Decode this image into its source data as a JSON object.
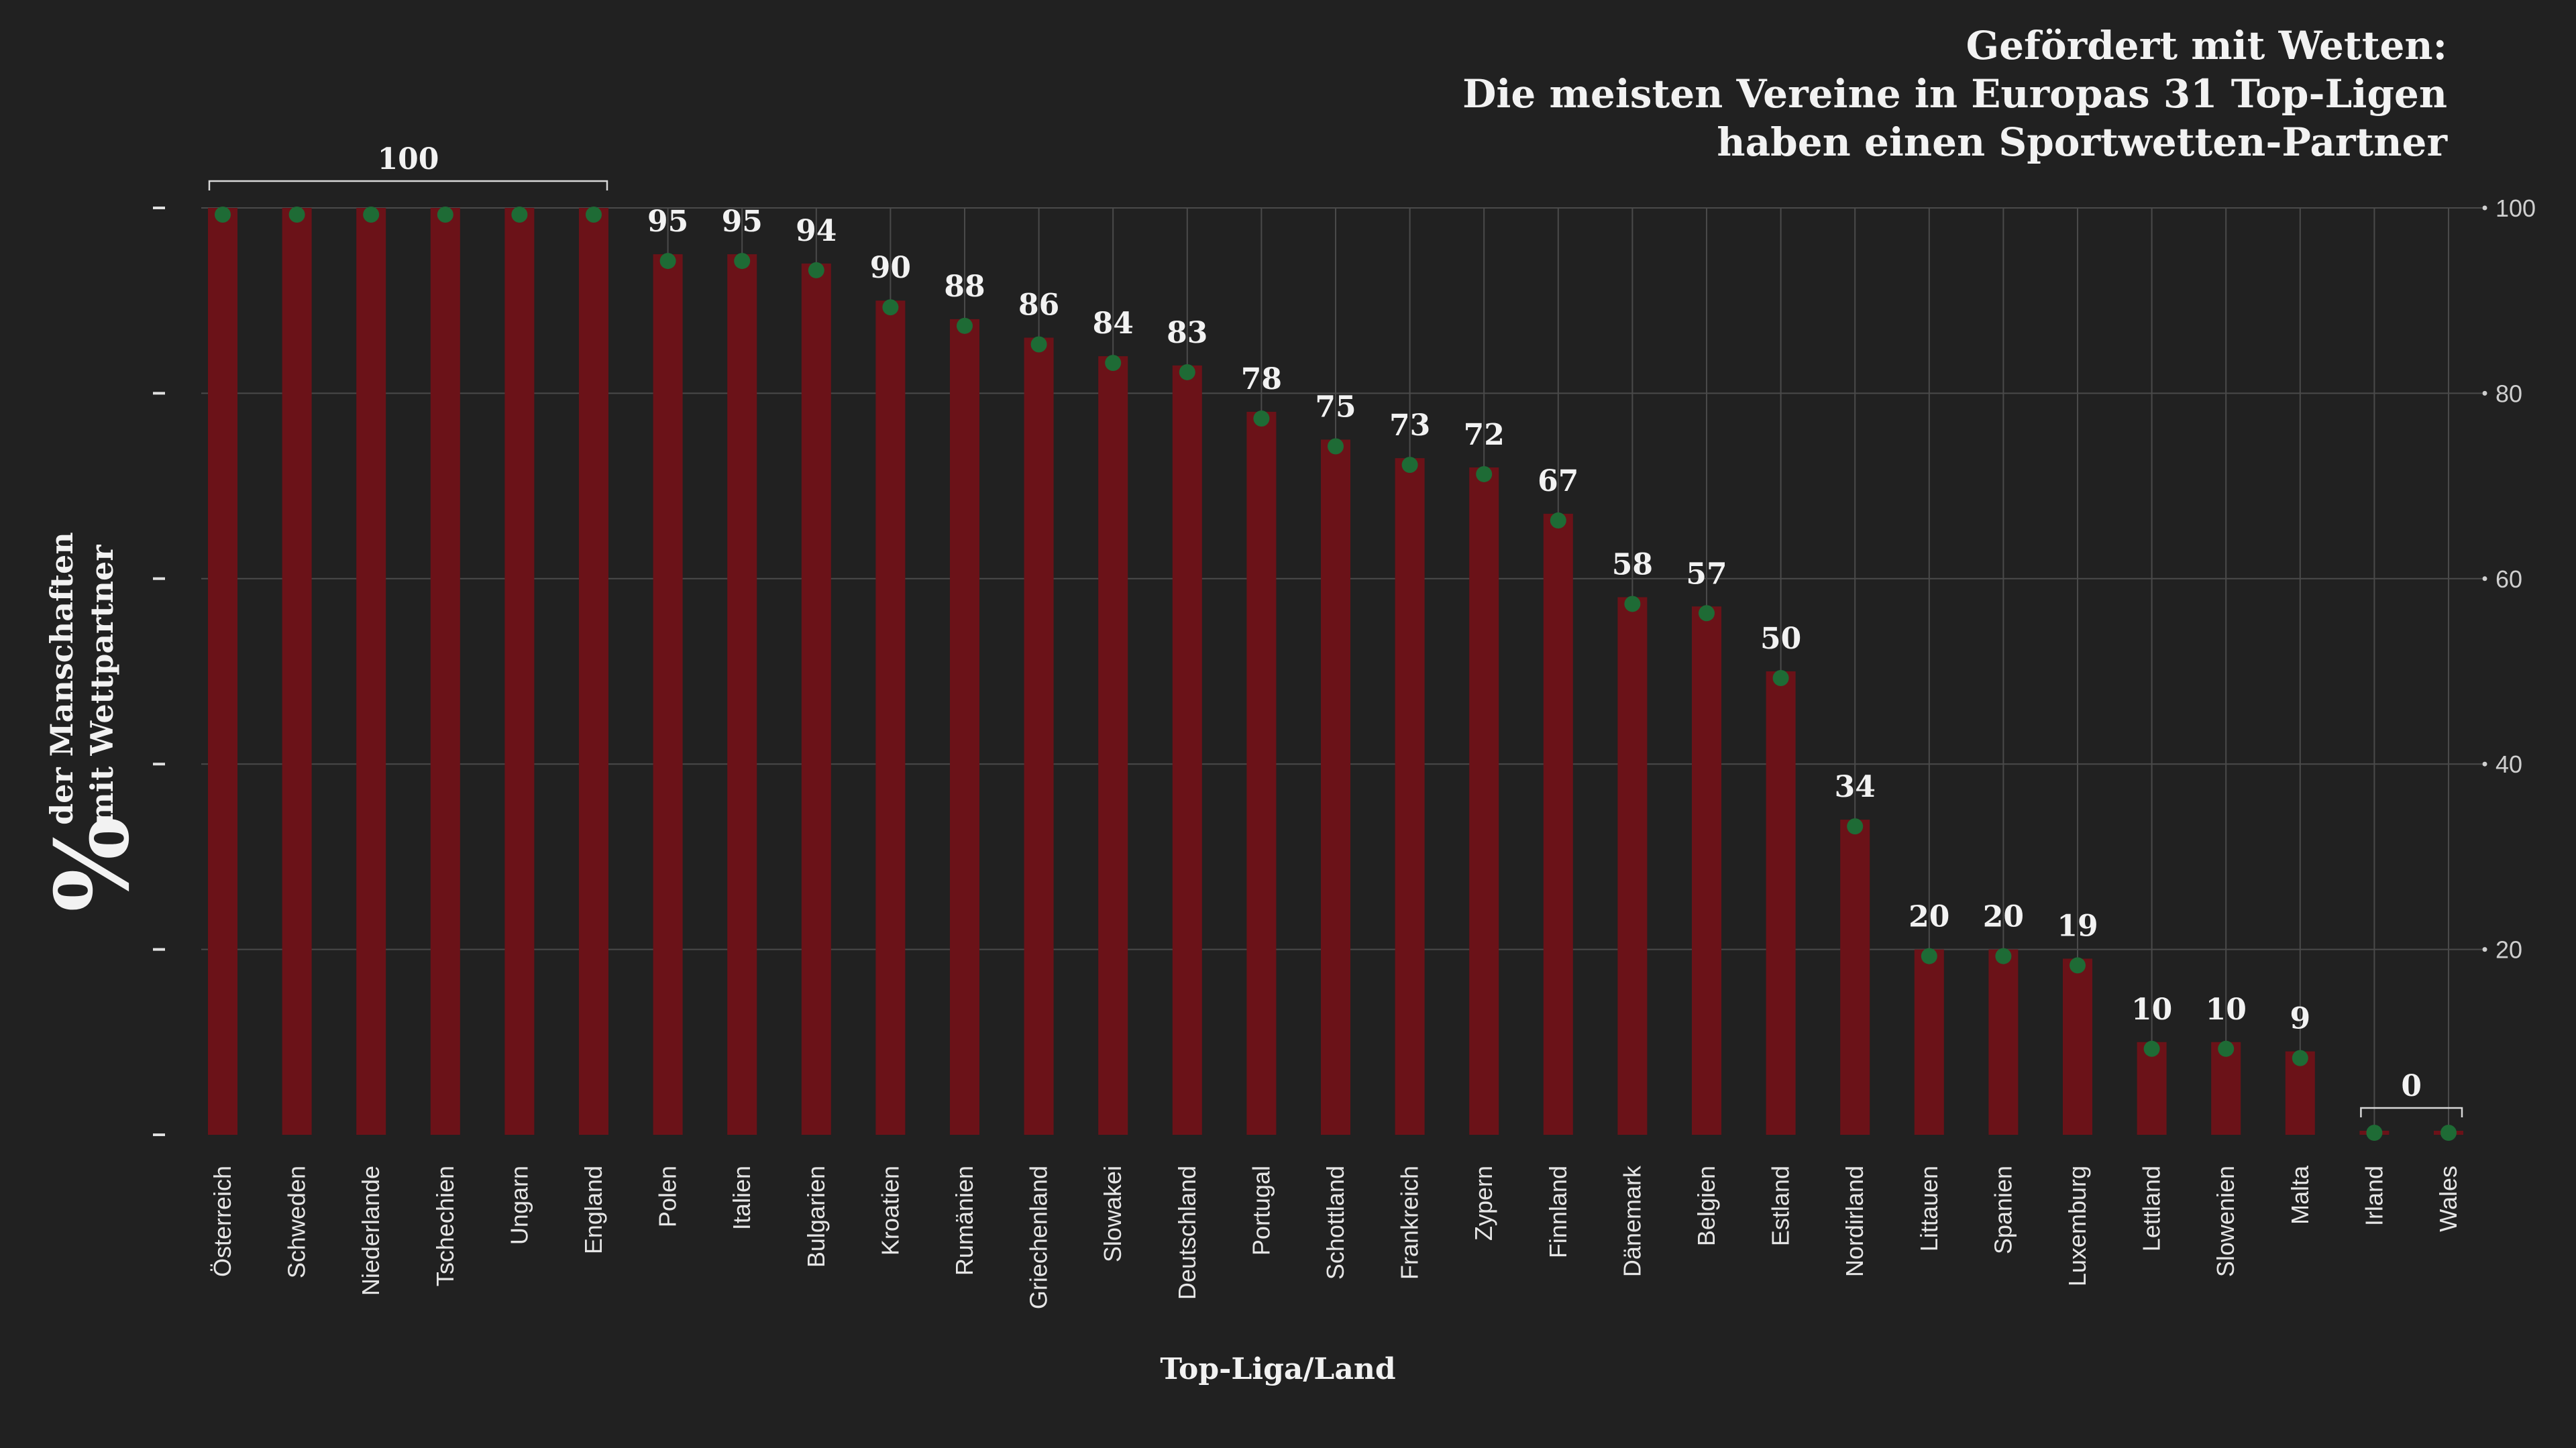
{
  "colors": {
    "background": "#212121",
    "bar": "#6b1218",
    "dot": "#1e6b35",
    "grid": "#4a4a4a",
    "text": "#f2f2f2"
  },
  "chart_data": {
    "type": "bar",
    "title": [
      "Gefördert mit Wetten:",
      "Die meisten Vereine in Europas 31 Top-Ligen",
      "haben einen Sportwetten-Partner"
    ],
    "xlabel": "Top-Liga/Land",
    "ylabel_symbol": "%",
    "ylabel_lines": [
      "der Manschaften",
      "mit Wettpartner"
    ],
    "ylim": [
      0,
      100
    ],
    "yticks_right": [
      20,
      40,
      60,
      80,
      100
    ],
    "grid": true,
    "categories": [
      "Österreich",
      "Schweden",
      "Niederlande",
      "Tschechien",
      "Ungarn",
      "England",
      "Polen",
      "Italien",
      "Bulgarien",
      "Kroatien",
      "Rumänien",
      "Griechenland",
      "Slowakei",
      "Deutschland",
      "Portugal",
      "Schottland",
      "Frankreich",
      "Zypern",
      "Finnland",
      "Dänemark",
      "Belgien",
      "Estland",
      "Nordirland",
      "Littauen",
      "Spanien",
      "Luxemburg",
      "Lettland",
      "Slowenien",
      "Malta",
      "Irland",
      "Wales"
    ],
    "values": [
      100,
      100,
      100,
      100,
      100,
      100,
      95,
      95,
      94,
      90,
      88,
      86,
      84,
      83,
      78,
      75,
      73,
      72,
      67,
      58,
      57,
      50,
      34,
      20,
      20,
      19,
      10,
      10,
      9,
      0,
      0
    ],
    "value_labels": [
      "",
      "",
      "",
      "",
      "",
      "",
      "95",
      "95",
      "94",
      "90",
      "88",
      "86",
      "84",
      "83",
      "78",
      "75",
      "73",
      "72",
      "67",
      "58",
      "57",
      "50",
      "34",
      "20",
      "20",
      "19",
      "10",
      "10",
      "9",
      "",
      ""
    ],
    "group_labels": [
      {
        "label": "100",
        "categories": [
          "Österreich",
          "England"
        ]
      },
      {
        "label": "0",
        "categories": [
          "Irland",
          "Wales"
        ]
      }
    ]
  }
}
